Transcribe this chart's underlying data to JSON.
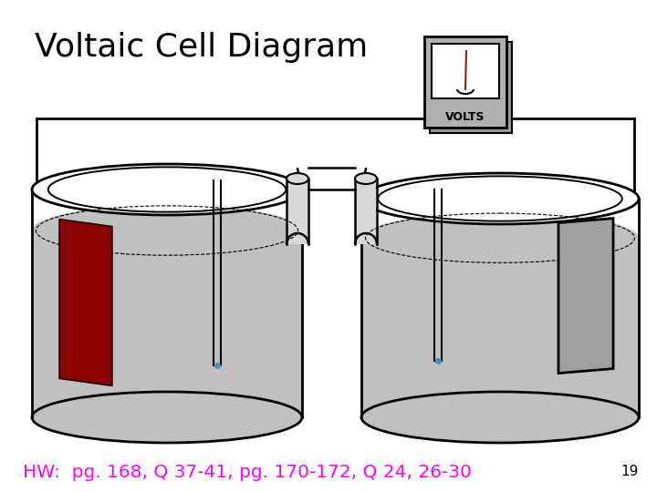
{
  "title": "Voltaic Cell Diagram",
  "hw_text": "HW:  pg. 168, Q 37-41, pg. 170-172, Q 24, 26-30",
  "page_num": "19",
  "bg_color": "#ffffff",
  "title_color": "#000000",
  "hw_color": "#ff00ff",
  "page_num_color": "#000000",
  "liquid_color": "#c0c0c0",
  "left_electrode_color": "#8b0000",
  "right_electrode_color": "#a0a0a0",
  "wire_color": "#000000",
  "voltmeter_body_color": "#b0b0b0",
  "voltmeter_screen_color": "#ffffff",
  "salt_bridge_color": "#d8d8d8",
  "needle_color": "#8b2020"
}
